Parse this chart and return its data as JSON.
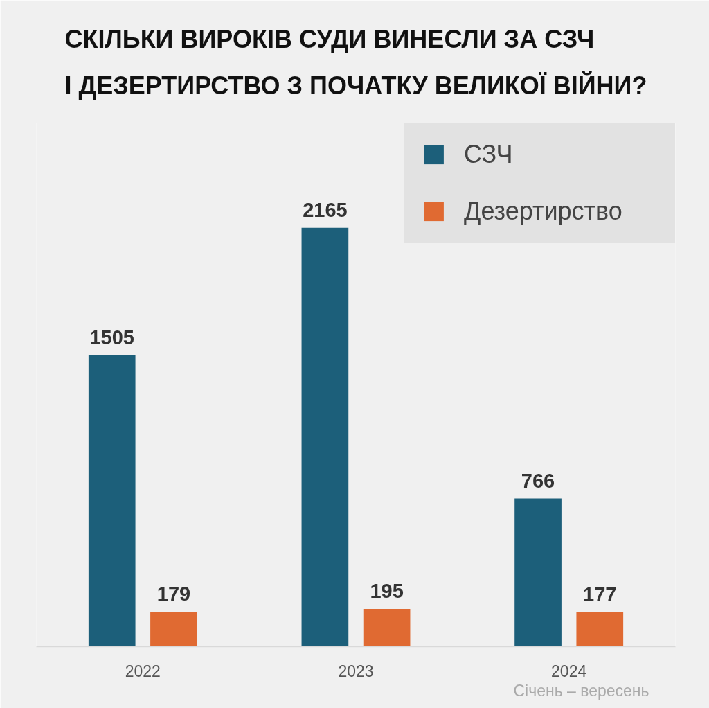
{
  "chart_data": {
    "type": "bar",
    "title": "СКІЛЬКИ ВИРОКІВ СУДИ ВИНЕСЛИ ЗА СЗЧ\nІ ДЕЗЕРТИРСТВО З ПОЧАТКУ ВЕЛИКОЇ ВІЙНИ?",
    "categories": [
      "2022",
      "2023",
      "2024"
    ],
    "series": [
      {
        "name": "СЗЧ",
        "color": "#1c5f7a",
        "values": [
          1505,
          2165,
          766
        ]
      },
      {
        "name": "Дезертирство",
        "color": "#e06a32",
        "values": [
          179,
          195,
          177
        ]
      }
    ],
    "data_labels": true,
    "legend": "top right",
    "tick_labels": "x",
    "annotations": [
      "Січень – вересень"
    ]
  }
}
